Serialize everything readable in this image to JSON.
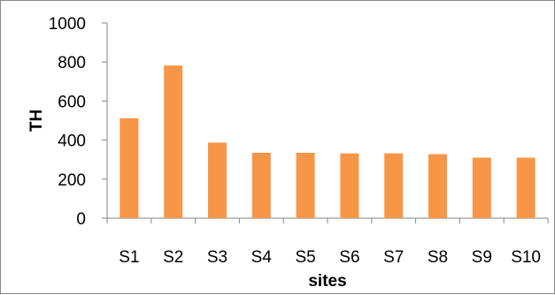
{
  "chart_data": {
    "type": "bar",
    "categories": [
      "S1",
      "S2",
      "S3",
      "S4",
      "S5",
      "S6",
      "S7",
      "S8",
      "S9",
      "S10"
    ],
    "values": [
      512,
      782,
      387,
      335,
      335,
      332,
      332,
      328,
      310,
      310
    ],
    "title": "",
    "xlabel": "sites",
    "ylabel": "TH",
    "ylim": [
      0,
      1000
    ],
    "yticks": [
      "0",
      "200",
      "400",
      "600",
      "800",
      "1000"
    ],
    "grid": false,
    "legend": "none",
    "bar_color": "#f79646"
  }
}
